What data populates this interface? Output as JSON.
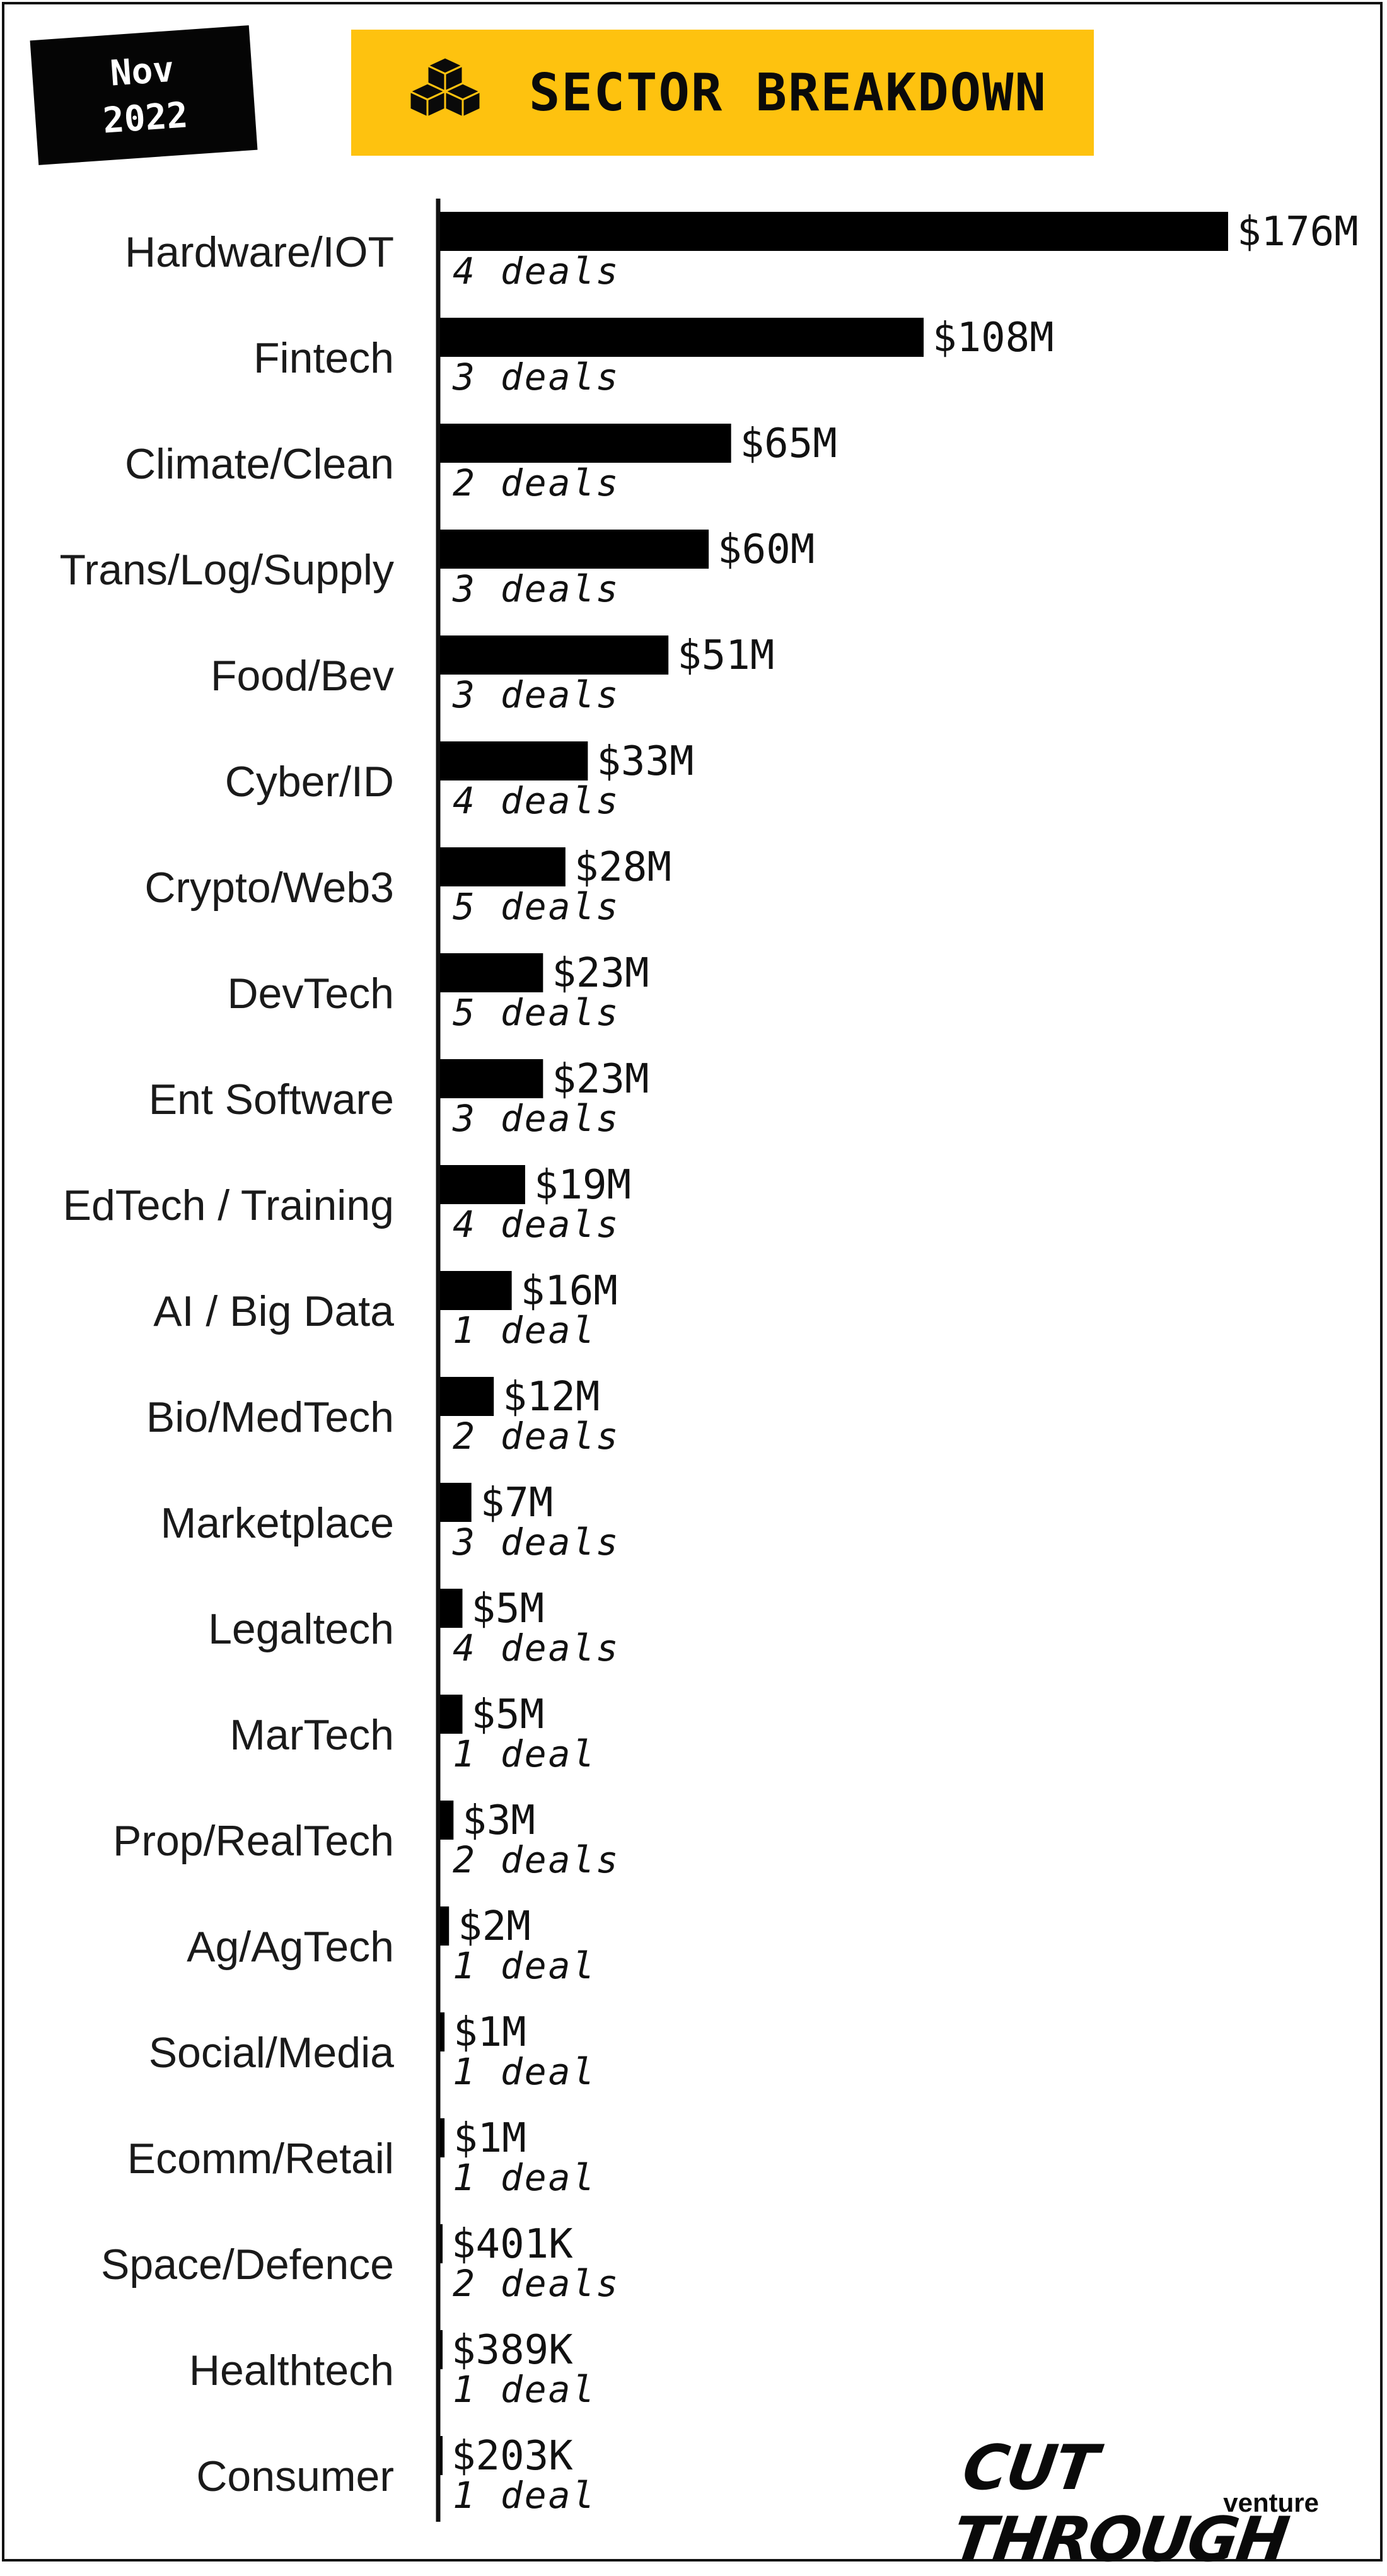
{
  "header": {
    "month": "Nov",
    "year": "2022",
    "title": "SECTOR BREAKDOWN",
    "banner_color": "#fec20f",
    "icon": "cubes-icon"
  },
  "logo": {
    "main": "CUT THROUGH",
    "sub": "venture"
  },
  "chart_data": {
    "type": "bar",
    "orientation": "horizontal",
    "title": "SECTOR BREAKDOWN",
    "bar_color": "#000000",
    "grid": false,
    "categories": [
      "Hardware/IOT",
      "Fintech",
      "Climate/Clean",
      "Trans/Log/Supply",
      "Food/Bev",
      "Cyber/ID",
      "Crypto/Web3",
      "DevTech",
      "Ent Software",
      "EdTech / Training",
      "AI / Big Data",
      "Bio/MedTech",
      "Marketplace",
      "Legaltech",
      "MarTech",
      "Prop/RealTech",
      "Ag/AgTech",
      "Social/Media",
      "Ecomm/Retail",
      "Space/Defence",
      "Healthtech",
      "Consumer"
    ],
    "values": [
      176,
      108,
      65,
      60,
      51,
      33,
      28,
      23,
      23,
      19,
      16,
      12,
      7,
      5,
      5,
      3,
      2,
      1,
      1,
      0.401,
      0.389,
      0.203
    ],
    "value_labels": [
      "$176M",
      "$108M",
      "$65M",
      "$60M",
      "$51M",
      "$33M",
      "$28M",
      "$23M",
      "$23M",
      "$19M",
      "$16M",
      "$12M",
      "$7M",
      "$5M",
      "$5M",
      "$3M",
      "$2M",
      "$1M",
      "$1M",
      "$401K",
      "$389K",
      "$203K"
    ],
    "deal_labels": [
      "4 deals",
      "3 deals",
      "2 deals",
      "3 deals",
      "3 deals",
      "4 deals",
      "5 deals",
      "5 deals",
      "3 deals",
      "4 deals",
      "1 deal",
      "2 deals",
      "3 deals",
      "4 deals",
      "1 deal",
      "2 deals",
      "1 deal",
      "1 deal",
      "1 deal",
      "2 deals",
      "1 deal",
      "1 deal"
    ],
    "unit": "$M",
    "xlim": [
      0,
      176
    ]
  }
}
